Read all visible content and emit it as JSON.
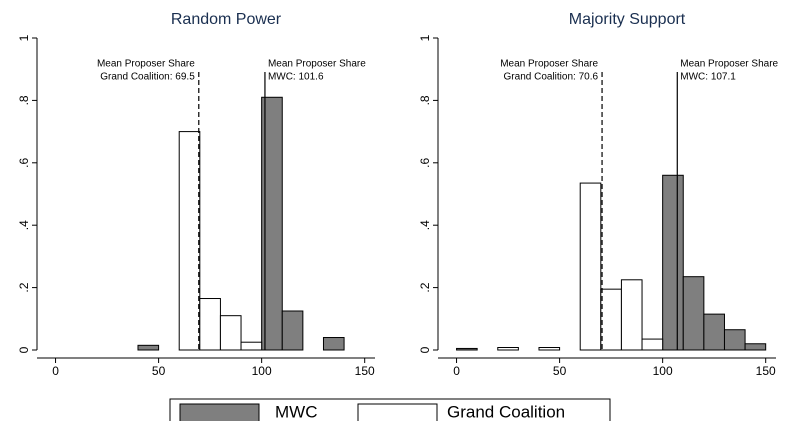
{
  "chart_data": [
    {
      "type": "histogram",
      "title": "Random Power",
      "bins": [
        0,
        10,
        20,
        30,
        40,
        50,
        60,
        70,
        80,
        90,
        100,
        110,
        120,
        130,
        140,
        150
      ],
      "series": [
        {
          "name": "MWC",
          "color": "#7f7f7f",
          "values": [
            0,
            0,
            0,
            0,
            0.015,
            0,
            0,
            0.015,
            0,
            0,
            0.81,
            0.125,
            0,
            0.04,
            0
          ]
        },
        {
          "name": "Grand Coalition",
          "color": "#ffffff",
          "values": [
            0,
            0,
            0,
            0,
            0,
            0,
            0.7,
            0.165,
            0.11,
            0.025,
            0,
            0,
            0,
            0,
            0
          ]
        }
      ],
      "xlim": [
        -9,
        155
      ],
      "xticks": [
        0,
        50,
        100,
        150
      ],
      "ylim": [
        0,
        1
      ],
      "yticks": [
        0,
        {
          "value": 0.2,
          "label": ".2"
        },
        {
          "value": 0.4,
          "label": ".4"
        },
        {
          "value": 0.6,
          "label": ".6"
        },
        {
          "value": 0.8,
          "label": ".8"
        },
        1
      ],
      "annotations": [
        {
          "x": 69.5,
          "style": "dashed",
          "text": [
            "Mean Proposer Share",
            "Grand Coalition: 69.5"
          ]
        },
        {
          "x": 101.6,
          "style": "solid",
          "text": [
            "Mean Proposer Share",
            "MWC: 101.6"
          ]
        }
      ]
    },
    {
      "type": "histogram",
      "title": "Majority Support",
      "bins": [
        0,
        10,
        20,
        30,
        40,
        50,
        60,
        70,
        80,
        90,
        100,
        110,
        120,
        130,
        140,
        150
      ],
      "series": [
        {
          "color": "#7f7f7f",
          "values": [
            0.005,
            0,
            0,
            0,
            0,
            0,
            0,
            0,
            0,
            0,
            0.56,
            0.235,
            0.115,
            0.065,
            0.02
          ]
        },
        {
          "color": "#ffffff",
          "values": [
            0,
            0,
            0.008,
            0,
            0.008,
            0,
            0.535,
            0.195,
            0.225,
            0.035,
            0,
            0,
            0,
            0,
            0
          ]
        }
      ],
      "xlim": [
        -9,
        155
      ],
      "xticks": [
        0,
        50,
        100,
        150
      ],
      "ylim": [
        0,
        1
      ],
      "yticks": [
        0,
        {
          "value": 0.2,
          "label": ".2"
        },
        {
          "value": 0.4,
          "label": ".4"
        },
        {
          "value": 0.6,
          "label": ".6"
        },
        {
          "value": 0.8,
          "label": ".8"
        },
        1
      ],
      "annotations": [
        {
          "x": 70.6,
          "style": "dashed",
          "text": [
            "Mean Proposer Share",
            "Grand Coalition: 70.6"
          ]
        },
        {
          "x": 107.1,
          "style": "solid",
          "text": [
            "Mean Proposer Share",
            "MWC: 107.1"
          ]
        }
      ]
    }
  ]
}
